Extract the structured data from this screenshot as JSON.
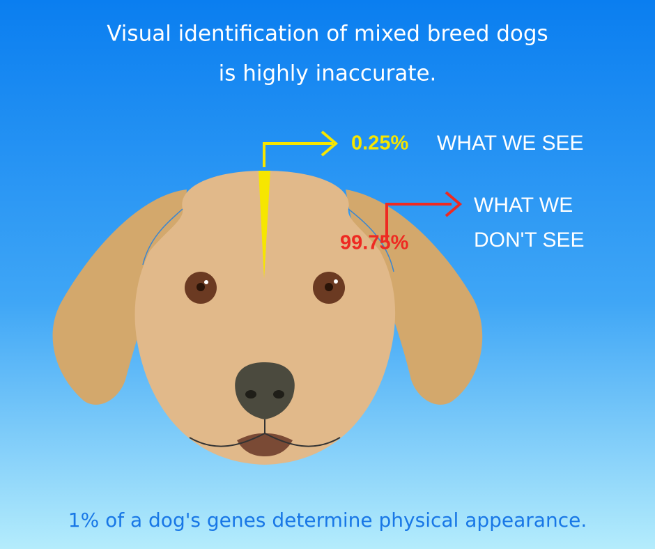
{
  "title": {
    "lines": [
      "Visual identification of mixed breed dogs",
      "is highly inaccurate."
    ]
  },
  "callouts": [
    {
      "percent": "0.25%",
      "label_lines": [
        "WHAT WE SEE"
      ]
    },
    {
      "percent": "99.75%",
      "label_lines": [
        "WHAT WE",
        "DON'T SEE"
      ]
    }
  ],
  "footer": "1% of a dog's genes determine physical appearance."
}
